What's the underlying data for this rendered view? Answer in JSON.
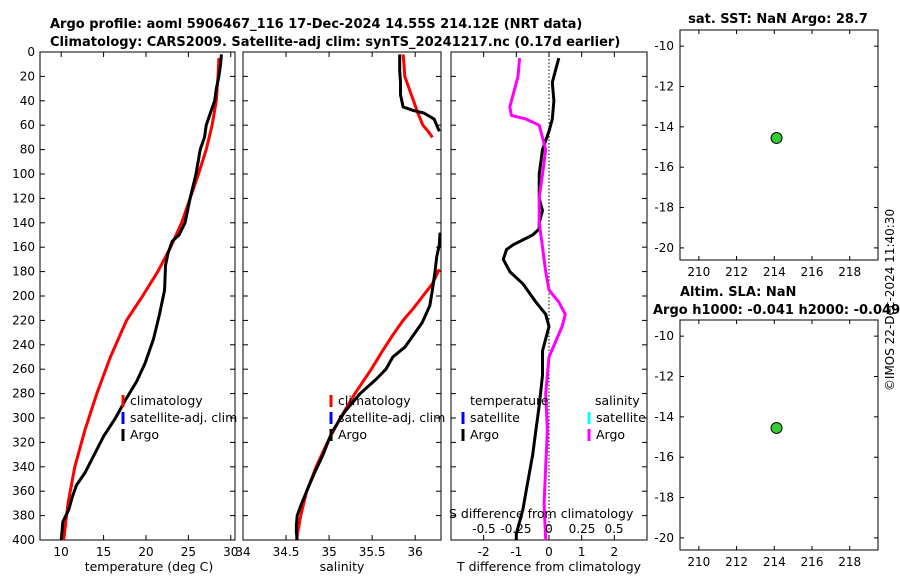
{
  "header": {
    "title_line1": "Argo profile: aoml 5906467_116 17-Dec-2024 14.55S 214.12E (NRT data)",
    "title_line2": "Climatology: CARS2009. Satellite-adj clim: synTS_20241217.nc (0.17d earlier)"
  },
  "stamp": "©IMOS 22-Dec-2024 11:40:30",
  "colors": {
    "climatology": "#ff0000",
    "satellite": "#0000ff",
    "argo": "#000000",
    "argo_s_diff": "#ff00ff",
    "satellite_s": "#00ffff",
    "dot": "#33cc33"
  },
  "chart_data": [
    {
      "type": "line",
      "name": "temperature-profile",
      "xlabel": "temperature (deg C)",
      "ylabel": "",
      "xlim": [
        7.5,
        30.5
      ],
      "ylim": [
        400,
        0
      ],
      "xticks": [
        10,
        15,
        20,
        25,
        30
      ],
      "yticks": [
        0,
        20,
        40,
        60,
        80,
        100,
        120,
        140,
        160,
        180,
        200,
        220,
        240,
        260,
        280,
        300,
        320,
        340,
        360,
        380,
        400
      ],
      "legend": [
        "climatology",
        "satellite-adj. clim",
        "Argo"
      ],
      "series": [
        {
          "name": "climatology",
          "color": "#ff0000",
          "x": [
            28.6,
            28.5,
            28.3,
            27.8,
            27.1,
            26.2,
            25.2,
            24.2,
            22.9,
            21.4,
            19.6,
            17.7,
            15.8,
            14.2,
            12.8,
            11.6,
            10.8,
            10.3
          ],
          "y": [
            5,
            20,
            40,
            60,
            80,
            100,
            120,
            140,
            160,
            180,
            200,
            220,
            250,
            280,
            310,
            340,
            370,
            400
          ]
        },
        {
          "name": "Argo",
          "color": "#000000",
          "x": [
            28.9,
            28.8,
            28.6,
            28.3,
            28.1,
            27.6,
            27.1,
            26.9,
            26.4,
            25.9,
            25.2,
            24.6,
            23.9,
            23.1,
            22.6,
            22.3,
            22.2,
            21.6,
            20.9,
            19.9,
            18.9,
            17.6,
            16.4,
            15.0,
            13.9,
            12.8,
            11.8,
            11.3,
            10.9,
            10.2,
            10.0
          ],
          "y": [
            2,
            10,
            20,
            30,
            40,
            50,
            60,
            70,
            80,
            100,
            120,
            140,
            150,
            155,
            165,
            175,
            195,
            215,
            235,
            255,
            270,
            285,
            300,
            315,
            330,
            345,
            355,
            365,
            375,
            385,
            400
          ]
        }
      ]
    },
    {
      "type": "line",
      "name": "salinity-profile",
      "xlabel": "salinity",
      "ylabel": "",
      "xlim": [
        34.0,
        36.3
      ],
      "ylim": [
        400,
        0
      ],
      "xticks": [
        34,
        34.5,
        35,
        35.5,
        36
      ],
      "legend": [
        "climatology",
        "satellite-adj. clim",
        "Argo"
      ],
      "series": [
        {
          "name": "climatology",
          "color": "#ff0000",
          "x": [
            35.86,
            35.87,
            35.88,
            35.93,
            35.98,
            36.03,
            36.09,
            36.15,
            36.2
          ],
          "y": [
            2,
            10,
            20,
            30,
            40,
            50,
            60,
            65,
            70
          ]
        },
        {
          "name": "climatology",
          "color": "#ff0000",
          "x": [
            36.28,
            36.2,
            36.09,
            35.98,
            35.86,
            35.74,
            35.62,
            35.49,
            35.3,
            35.13,
            34.98,
            34.85,
            34.74,
            34.67,
            34.62
          ],
          "y": [
            178,
            190,
            200,
            210,
            220,
            232,
            245,
            260,
            280,
            300,
            320,
            340,
            360,
            380,
            400
          ]
        },
        {
          "name": "Argo",
          "color": "#000000",
          "x": [
            35.82,
            35.82,
            35.83,
            35.83,
            35.86,
            35.98,
            36.1,
            36.22,
            36.28
          ],
          "y": [
            2,
            15,
            25,
            35,
            45,
            48,
            50,
            55,
            65
          ]
        },
        {
          "name": "Argo",
          "color": "#000000",
          "x": [
            36.29,
            36.28,
            36.25,
            36.23,
            36.2,
            36.17,
            36.08,
            35.98,
            35.88,
            35.74,
            35.66,
            35.55,
            35.36,
            35.18,
            35.03,
            34.93,
            34.83,
            34.74,
            34.67,
            34.63,
            34.62,
            34.62,
            34.63
          ],
          "y": [
            148,
            158,
            168,
            180,
            195,
            208,
            222,
            232,
            242,
            250,
            260,
            268,
            280,
            295,
            312,
            330,
            345,
            360,
            372,
            380,
            388,
            394,
            400
          ]
        }
      ]
    },
    {
      "type": "line",
      "name": "difference-profile",
      "xlabel": "T difference from climatology",
      "top_label": "S difference from climatology",
      "xlim": [
        -3.0,
        3.0
      ],
      "ylim": [
        400,
        0
      ],
      "xticks": [
        -2,
        -1,
        0,
        1,
        2
      ],
      "top_ticks": [
        "-0.5",
        "-0.25",
        "0",
        "0.25",
        "0.5"
      ],
      "legend_t": [
        "temperature",
        "satellite",
        "Argo"
      ],
      "legend_s": [
        "salinity",
        "satellite",
        "Argo"
      ],
      "series": [
        {
          "name": "Argo T diff",
          "color": "#000000",
          "x": [
            0.3,
            0.2,
            0.1,
            0.15,
            0.1,
            0.0,
            -0.2,
            -0.3,
            -0.3,
            -0.2,
            -0.3,
            -0.3,
            -0.5,
            -1.1,
            -1.3,
            -1.4,
            -1.2,
            -0.8,
            -0.4,
            -0.1,
            0.0,
            -0.2,
            -0.2,
            -0.3,
            -0.4,
            -0.5,
            -0.6,
            -0.7,
            -0.8,
            -0.9,
            -1.0,
            -1.0
          ],
          "y": [
            5,
            15,
            25,
            40,
            55,
            65,
            80,
            100,
            120,
            130,
            140,
            145,
            150,
            158,
            162,
            170,
            180,
            190,
            205,
            215,
            225,
            245,
            265,
            290,
            310,
            330,
            345,
            360,
            375,
            385,
            395,
            400
          ]
        },
        {
          "name": "Argo S diff",
          "color": "#ff00ff",
          "x": [
            -0.9,
            -0.95,
            -1.1,
            -1.2,
            -1.15,
            -0.7,
            -0.3,
            -0.1,
            -0.2,
            -0.3,
            -0.3,
            -0.2,
            -0.1,
            0.0,
            0.3,
            0.5,
            0.4,
            0.0,
            -0.1,
            -0.05,
            -0.1,
            -0.15,
            -0.1
          ],
          "y": [
            5,
            20,
            35,
            45,
            52,
            55,
            60,
            80,
            100,
            120,
            140,
            160,
            180,
            195,
            205,
            215,
            225,
            250,
            280,
            310,
            340,
            370,
            400
          ]
        }
      ]
    },
    {
      "type": "scatter",
      "name": "location-map-sst",
      "title": "sat. SST: NaN Argo: 28.7",
      "xlim": [
        209,
        219.5
      ],
      "ylim": [
        -20.6,
        -9.2
      ],
      "xticks": [
        210,
        212,
        214,
        216,
        218
      ],
      "yticks": [
        -10,
        -12,
        -14,
        -16,
        -18,
        -20
      ],
      "points": [
        {
          "x": 214.12,
          "y": -14.55
        }
      ]
    },
    {
      "type": "scatter",
      "name": "location-map-sla",
      "title": "Altim. SLA: NaN",
      "title2": "Argo h1000: -0.041 h2000: -0.049",
      "xlim": [
        209,
        219.5
      ],
      "ylim": [
        -20.6,
        -9.2
      ],
      "xticks": [
        210,
        212,
        214,
        216,
        218
      ],
      "yticks": [
        -10,
        -12,
        -14,
        -16,
        -18,
        -20
      ],
      "points": [
        {
          "x": 214.12,
          "y": -14.55
        }
      ]
    }
  ]
}
